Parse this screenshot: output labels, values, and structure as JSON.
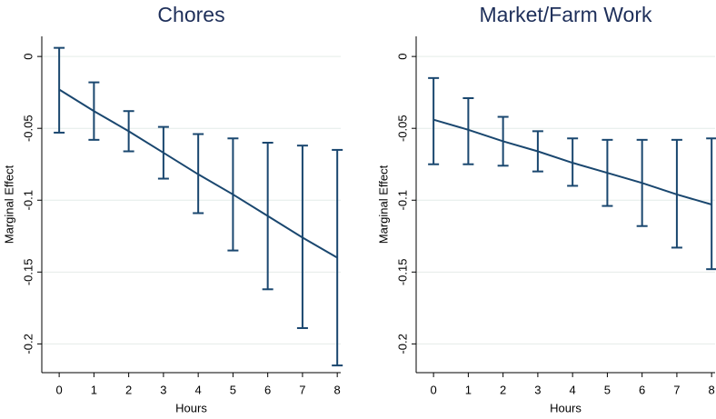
{
  "chart_data": [
    {
      "type": "line",
      "title": "Chores",
      "xlabel": "Hours",
      "ylabel": "Marginal Effect",
      "x": [
        0,
        1,
        2,
        3,
        4,
        5,
        6,
        7,
        8
      ],
      "series": [
        {
          "color": "#1a476f",
          "values": [
            -0.023,
            -0.038,
            -0.052,
            -0.067,
            -0.082,
            -0.096,
            -0.111,
            -0.126,
            -0.14
          ],
          "upper": [
            0.006,
            -0.018,
            -0.038,
            -0.049,
            -0.054,
            -0.057,
            -0.06,
            -0.062,
            -0.065
          ],
          "lower": [
            -0.053,
            -0.058,
            -0.066,
            -0.085,
            -0.109,
            -0.135,
            -0.162,
            -0.189,
            -0.215
          ]
        }
      ],
      "xlim": [
        -0.5,
        8.1
      ],
      "xticks": [
        0,
        1,
        2,
        3,
        4,
        5,
        6,
        7,
        8
      ],
      "ylim": [
        -0.22,
        0.014
      ],
      "yticks": [
        0,
        -0.05,
        -0.1,
        -0.15,
        -0.2
      ],
      "grid": true
    },
    {
      "type": "line",
      "title": "Market/Farm Work",
      "xlabel": "Hours",
      "ylabel": "Marginal Effect",
      "x": [
        0,
        1,
        2,
        3,
        4,
        5,
        6,
        7,
        8
      ],
      "series": [
        {
          "color": "#1a476f",
          "values": [
            -0.044,
            -0.051,
            -0.059,
            -0.066,
            -0.074,
            -0.081,
            -0.088,
            -0.096,
            -0.103
          ],
          "upper": [
            -0.015,
            -0.029,
            -0.042,
            -0.052,
            -0.057,
            -0.058,
            -0.058,
            -0.058,
            -0.057
          ],
          "lower": [
            -0.075,
            -0.075,
            -0.076,
            -0.08,
            -0.09,
            -0.104,
            -0.118,
            -0.133,
            -0.148
          ]
        }
      ],
      "xlim": [
        -0.5,
        8.1
      ],
      "xticks": [
        0,
        1,
        2,
        3,
        4,
        5,
        6,
        7,
        8
      ],
      "ylim": [
        -0.22,
        0.014
      ],
      "yticks": [
        0,
        -0.05,
        -0.1,
        -0.15,
        -0.2
      ],
      "grid": true
    }
  ]
}
